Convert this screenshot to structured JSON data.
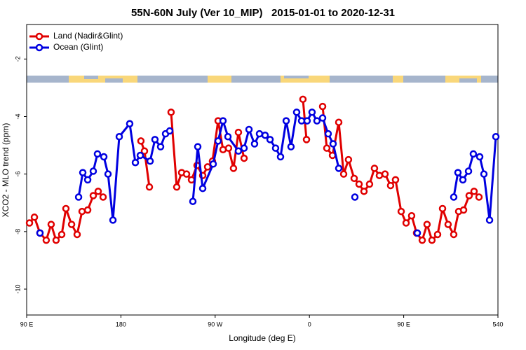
{
  "chart_data": {
    "type": "line",
    "title": "55N-60N July (Ver 10_MIP)   2015-01-01 to 2020-12-31",
    "x_label": "Longitude (deg E)",
    "y_label": "XCO2 - MLO trend (ppm)",
    "xlim": [
      90,
      540
    ],
    "ylim": [
      -10.9,
      -0.8
    ],
    "xticks": [
      {
        "value": 90,
        "label": "90 E"
      },
      180,
      {
        "value": 270,
        "label": "90 W"
      },
      {
        "value": 360,
        "label": "0"
      },
      {
        "value": 450,
        "label": "90 E"
      },
      540
    ],
    "yticks": [
      -2,
      -4,
      -6,
      -8,
      -10
    ],
    "legend": "top-left",
    "series": [
      {
        "name": "Land (Nadir&Glint)",
        "color": "#e00000",
        "x": [
          92.7,
          97.4,
          102.7,
          108.7,
          113.4,
          118.1,
          123.5,
          127.5,
          132.9,
          138.2,
          142.9,
          148.3,
          153.6,
          158.3,
          163.0,
          180,
          199.1,
          202.5,
          207.2,
          217,
          227.9,
          233.3,
          238.0,
          242.7,
          247.4,
          252.7,
          258.1,
          262.8,
          267.4,
          272.8,
          277.5,
          282.8,
          287.5,
          292.2,
          297.6,
          330,
          353.8,
          357.2,
          365,
          372.6,
          376.6,
          382.0,
          388.0,
          392.7,
          397.3,
          402.7,
          407.4,
          412.1,
          417.4,
          422.1,
          426.8,
          432.2,
          437.5,
          442.2,
          447.6,
          452.3,
          457.6,
          462.3,
          467.7,
          472.3,
          477.0,
          482.4,
          487.1,
          492.4,
          497.8,
          502.5,
          507.2,
          512.5,
          517.2,
          521.9
        ],
        "values": [
          -7.7,
          -7.5,
          -8.05,
          -8.3,
          -7.75,
          -8.3,
          -8.1,
          -7.2,
          -7.75,
          -8.1,
          -7.3,
          -7.25,
          -6.75,
          -6.6,
          -6.8,
          null,
          -4.85,
          -5.2,
          -6.45,
          null,
          -3.85,
          -6.45,
          -5.95,
          -6.0,
          -6.2,
          -5.7,
          -6.05,
          -5.75,
          -5.55,
          -4.15,
          -5.15,
          -5.1,
          -5.8,
          -4.55,
          -5.45,
          null,
          -3.4,
          -4.8,
          null,
          -3.65,
          -5.1,
          -5.35,
          -4.2,
          -6.0,
          -5.5,
          -6.15,
          -6.35,
          -6.6,
          -6.35,
          -5.8,
          -6.05,
          -6.0,
          -6.4,
          -6.2,
          -7.3,
          -7.7,
          -7.45,
          -8.05,
          -8.3,
          -7.75,
          -8.3,
          -8.1,
          -7.2,
          -7.75,
          -8.1,
          -7.3,
          -7.25,
          -6.75,
          -6.6,
          -6.8
        ]
      },
      {
        "name": "Ocean (Glint)",
        "color": "#0000e0",
        "x": [
          102.7,
          115,
          139.6,
          143.6,
          148.3,
          153.6,
          157.6,
          163.7,
          167.7,
          172.4,
          178.4,
          188.4,
          193.8,
          198.5,
          207.9,
          212.5,
          217.9,
          222.6,
          226.6,
          235,
          248.7,
          253.4,
          258.1,
          268.1,
          272.8,
          277.5,
          282.2,
          292.2,
          297.6,
          302.3,
          307.6,
          312.3,
          317.7,
          322.4,
          327.7,
          332.4,
          337.8,
          342.4,
          347.8,
          352.5,
          357.8,
          362.5,
          367.2,
          372.6,
          377.9,
          382.6,
          388.0,
          395,
          403.4,
          430,
          463.0,
          475,
          497.8,
          501.8,
          506.5,
          511.9,
          516.5,
          522.6,
          526.6,
          532.0,
          538.0
        ],
        "values": [
          -8.05,
          null,
          -6.8,
          -5.95,
          -6.2,
          -5.9,
          -5.3,
          -5.4,
          -6.0,
          -7.6,
          -4.7,
          -4.25,
          -5.6,
          -5.35,
          -5.55,
          -4.8,
          -5.05,
          -4.6,
          -4.5,
          null,
          -6.95,
          -5.05,
          -6.5,
          -5.65,
          -4.85,
          -4.15,
          -4.7,
          -5.2,
          -5.1,
          -4.45,
          -4.95,
          -4.6,
          -4.65,
          -4.8,
          -5.1,
          -5.4,
          -4.15,
          -5.05,
          -3.85,
          -4.15,
          -4.15,
          -3.85,
          -4.15,
          -4.05,
          -4.6,
          -4.95,
          -5.8,
          null,
          -6.8,
          null,
          -8.05,
          null,
          -6.8,
          -5.95,
          -6.2,
          -5.9,
          -5.3,
          -5.4,
          -6.0,
          -7.6,
          -4.7
        ]
      }
    ]
  }
}
